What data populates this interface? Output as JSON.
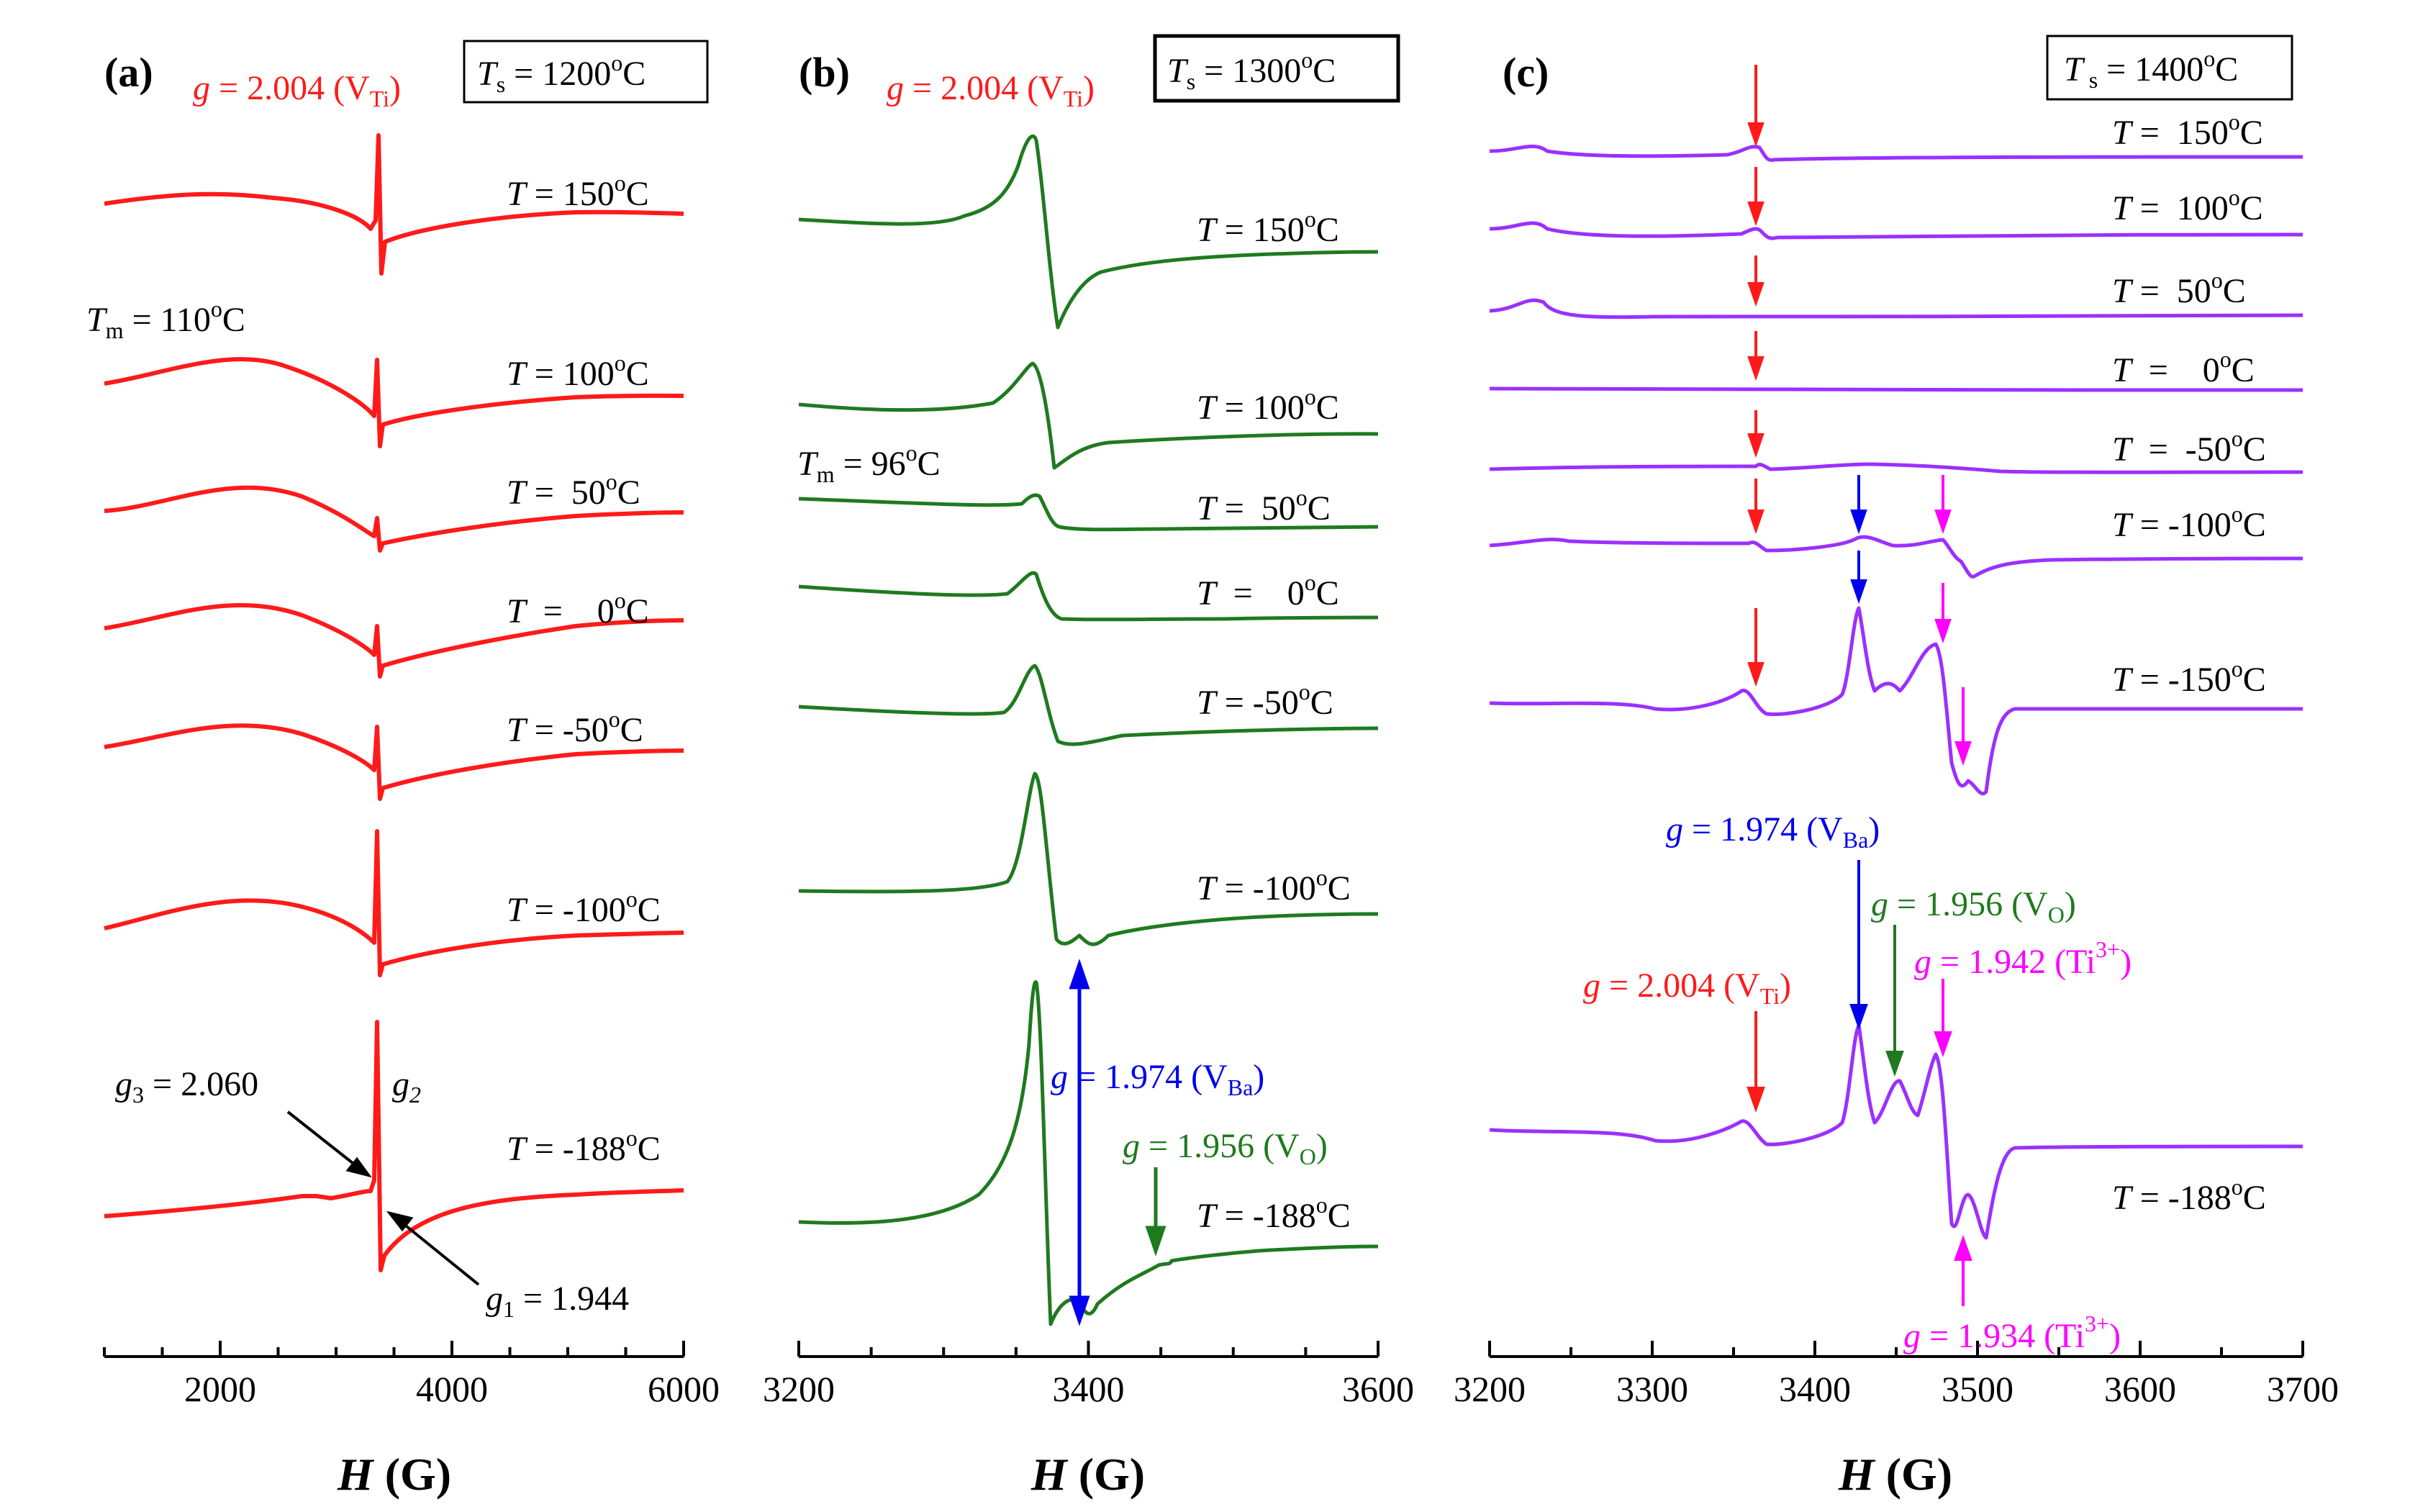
{
  "figure": {
    "description_free": true
  },
  "chart_data": [
    {
      "id": "a",
      "type": "line",
      "panel_label": "(a)",
      "ts_box": {
        "base": "T",
        "sub": "s",
        "rest": " = 1200",
        "deg": "o",
        "unit": "C"
      },
      "header_g": {
        "prefix": "g",
        "text": " = 2.004 (V",
        "sub": "Ti",
        "close": ")"
      },
      "tm_label": {
        "base": "T",
        "sub": "m",
        "rest": " = 110",
        "deg": "o",
        "unit": "C"
      },
      "xlabel": {
        "italic": "H",
        "rest": " (G)"
      },
      "xlim": [
        1000,
        6000
      ],
      "xticks": [
        2000,
        4000,
        6000
      ],
      "xtick_labels": [
        "2000",
        "4000",
        "6000"
      ],
      "minor_step": 500,
      "line_color": "#ff1a1a",
      "series": [
        {
          "name": "T = 150 °C",
          "label": {
            "pre": "T",
            "mid": " = 150",
            "deg": "o",
            "unit": "C"
          }
        },
        {
          "name": "T = 100 °C",
          "label": {
            "pre": "T",
            "mid": " = 100",
            "deg": "o",
            "unit": "C"
          }
        },
        {
          "name": "T = 50 °C",
          "label": {
            "pre": "T",
            "mid": " =  50",
            "deg": "o",
            "unit": "C"
          }
        },
        {
          "name": "T = 0 °C",
          "label": {
            "pre": "T",
            "mid": "  =    0",
            "deg": "o",
            "unit": "C"
          }
        },
        {
          "name": "T = -50 °C",
          "label": {
            "pre": "T",
            "mid": " = -50",
            "deg": "o",
            "unit": "C"
          }
        },
        {
          "name": "T = -100 °C",
          "label": {
            "pre": "T",
            "mid": " = -100",
            "deg": "o",
            "unit": "C"
          }
        },
        {
          "name": "T = -188 °C",
          "label": {
            "pre": "T",
            "mid": " = -188",
            "deg": "o",
            "unit": "C"
          }
        }
      ],
      "annotations": {
        "g3": {
          "pre": "g",
          "sub": "3",
          "rest": " = 2.060"
        },
        "g2": {
          "pre": "g",
          "sub": "2"
        },
        "g1": {
          "pre": "g",
          "sub": "1",
          "rest": " = 1.944"
        }
      }
    },
    {
      "id": "b",
      "type": "line",
      "panel_label": "(b)",
      "ts_box": {
        "base": "T",
        "sub": "s",
        "rest": " = 1300",
        "deg": "o",
        "unit": "C"
      },
      "header_g": {
        "prefix": "g",
        "text": " = 2.004 (V",
        "sub": "Ti",
        "close": ")"
      },
      "tm_label": {
        "base": "T",
        "sub": "m",
        "rest": " = 96",
        "deg": "o",
        "unit": "C"
      },
      "xlabel": {
        "italic": "H",
        "rest": " (G)"
      },
      "xlim": [
        3200,
        3600
      ],
      "xticks": [
        3200,
        3400,
        3600
      ],
      "xtick_labels": [
        "3200",
        "3400",
        "3600"
      ],
      "minor_step": 50,
      "line_color": "#1f7a1f",
      "series": [
        {
          "name": "T = 150 °C",
          "label": {
            "pre": "T",
            "mid": " = 150",
            "deg": "o",
            "unit": "C"
          }
        },
        {
          "name": "T = 100 °C",
          "label": {
            "pre": "T",
            "mid": " = 100",
            "deg": "o",
            "unit": "C"
          }
        },
        {
          "name": "T = 50 °C",
          "label": {
            "pre": "T",
            "mid": " =  50",
            "deg": "o",
            "unit": "C"
          }
        },
        {
          "name": "T = 0 °C",
          "label": {
            "pre": "T",
            "mid": "  =    0",
            "deg": "o",
            "unit": "C"
          }
        },
        {
          "name": "T = -50 °C",
          "label": {
            "pre": "T",
            "mid": " = -50",
            "deg": "o",
            "unit": "C"
          }
        },
        {
          "name": "T = -100 °C",
          "label": {
            "pre": "T",
            "mid": " = -100",
            "deg": "o",
            "unit": "C"
          }
        },
        {
          "name": "T = -188 °C",
          "label": {
            "pre": "T",
            "mid": " = -188",
            "deg": "o",
            "unit": "C"
          }
        }
      ],
      "annotations": {
        "vba": {
          "pre": "g",
          "rest": " = 1.974 (V",
          "sub": "Ba",
          "close": ")",
          "color": "#0000ee",
          "field_G": 3397
        },
        "vo": {
          "pre": "g",
          "rest": " = 1.956 (V",
          "sub": "O",
          "close": ")",
          "color": "#1f7a1f",
          "field_G": 3448
        }
      }
    },
    {
      "id": "c",
      "type": "line",
      "panel_label": "(c)",
      "ts_box": {
        "base": "T",
        "sub": " s",
        "rest": " = 1400",
        "deg": "o",
        "unit": "C"
      },
      "xlabel": {
        "italic": "H",
        "rest": " (G)"
      },
      "xlim": [
        3200,
        3700
      ],
      "xticks": [
        3200,
        3300,
        3400,
        3500,
        3600,
        3700
      ],
      "xtick_labels": [
        "3200",
        "3300",
        "3400",
        "3500",
        "3600",
        "3700"
      ],
      "minor_step": 50,
      "line_color": "#9b30ff",
      "series": [
        {
          "name": "T = 150 °C",
          "label": {
            "pre": "T",
            "mid": " =  150",
            "deg": "o",
            "unit": "C"
          }
        },
        {
          "name": "T = 100 °C",
          "label": {
            "pre": "T",
            "mid": " =  100",
            "deg": "o",
            "unit": "C"
          }
        },
        {
          "name": "T = 50 °C",
          "label": {
            "pre": "T",
            "mid": " =  50",
            "deg": "o",
            "unit": "C"
          }
        },
        {
          "name": "T = 0 °C",
          "label": {
            "pre": "T",
            "mid": "  =    0",
            "deg": "o",
            "unit": "C"
          }
        },
        {
          "name": "T = -50 °C",
          "label": {
            "pre": "T",
            "mid": "  =  -50",
            "deg": "o",
            "unit": "C"
          }
        },
        {
          "name": "T = -100 °C",
          "label": {
            "pre": "T",
            "mid": " = -100",
            "deg": "o",
            "unit": "C"
          }
        },
        {
          "name": "T = -150 °C",
          "label": {
            "pre": "T",
            "mid": " = -150",
            "deg": "o",
            "unit": "C"
          }
        },
        {
          "name": "T = -188 °C",
          "label": {
            "pre": "T",
            "mid": " = -188",
            "deg": "o",
            "unit": "C"
          }
        }
      ],
      "annotations": {
        "vba": {
          "pre": "g",
          "rest": " = 1.974 (V",
          "sub": "Ba",
          "close": ")",
          "color": "#0000ee",
          "field_G": 3428
        },
        "vo": {
          "pre": "g",
          "rest": " = 1.956 (V",
          "sub": "O",
          "close": ")",
          "color": "#1f7a1f",
          "field_G": 3451
        },
        "vti": {
          "pre": "g",
          "rest": " = 2.004 (V",
          "sub": "Ti",
          "close": ")",
          "color": "#ff1a1a",
          "field_G": 3367
        },
        "ti1": {
          "pre": "g",
          "rest": " = 1.942 (T",
          "mid": "i",
          "sup": "3+",
          "close": ")",
          "color": "#ff00ff",
          "field_G": 3475
        },
        "ti2": {
          "pre": "g",
          "rest": " = 1.934 (T",
          "mid": "i",
          "sup": "3+",
          "close": ")",
          "color": "#ff00ff",
          "field_G": 3489
        }
      }
    }
  ]
}
